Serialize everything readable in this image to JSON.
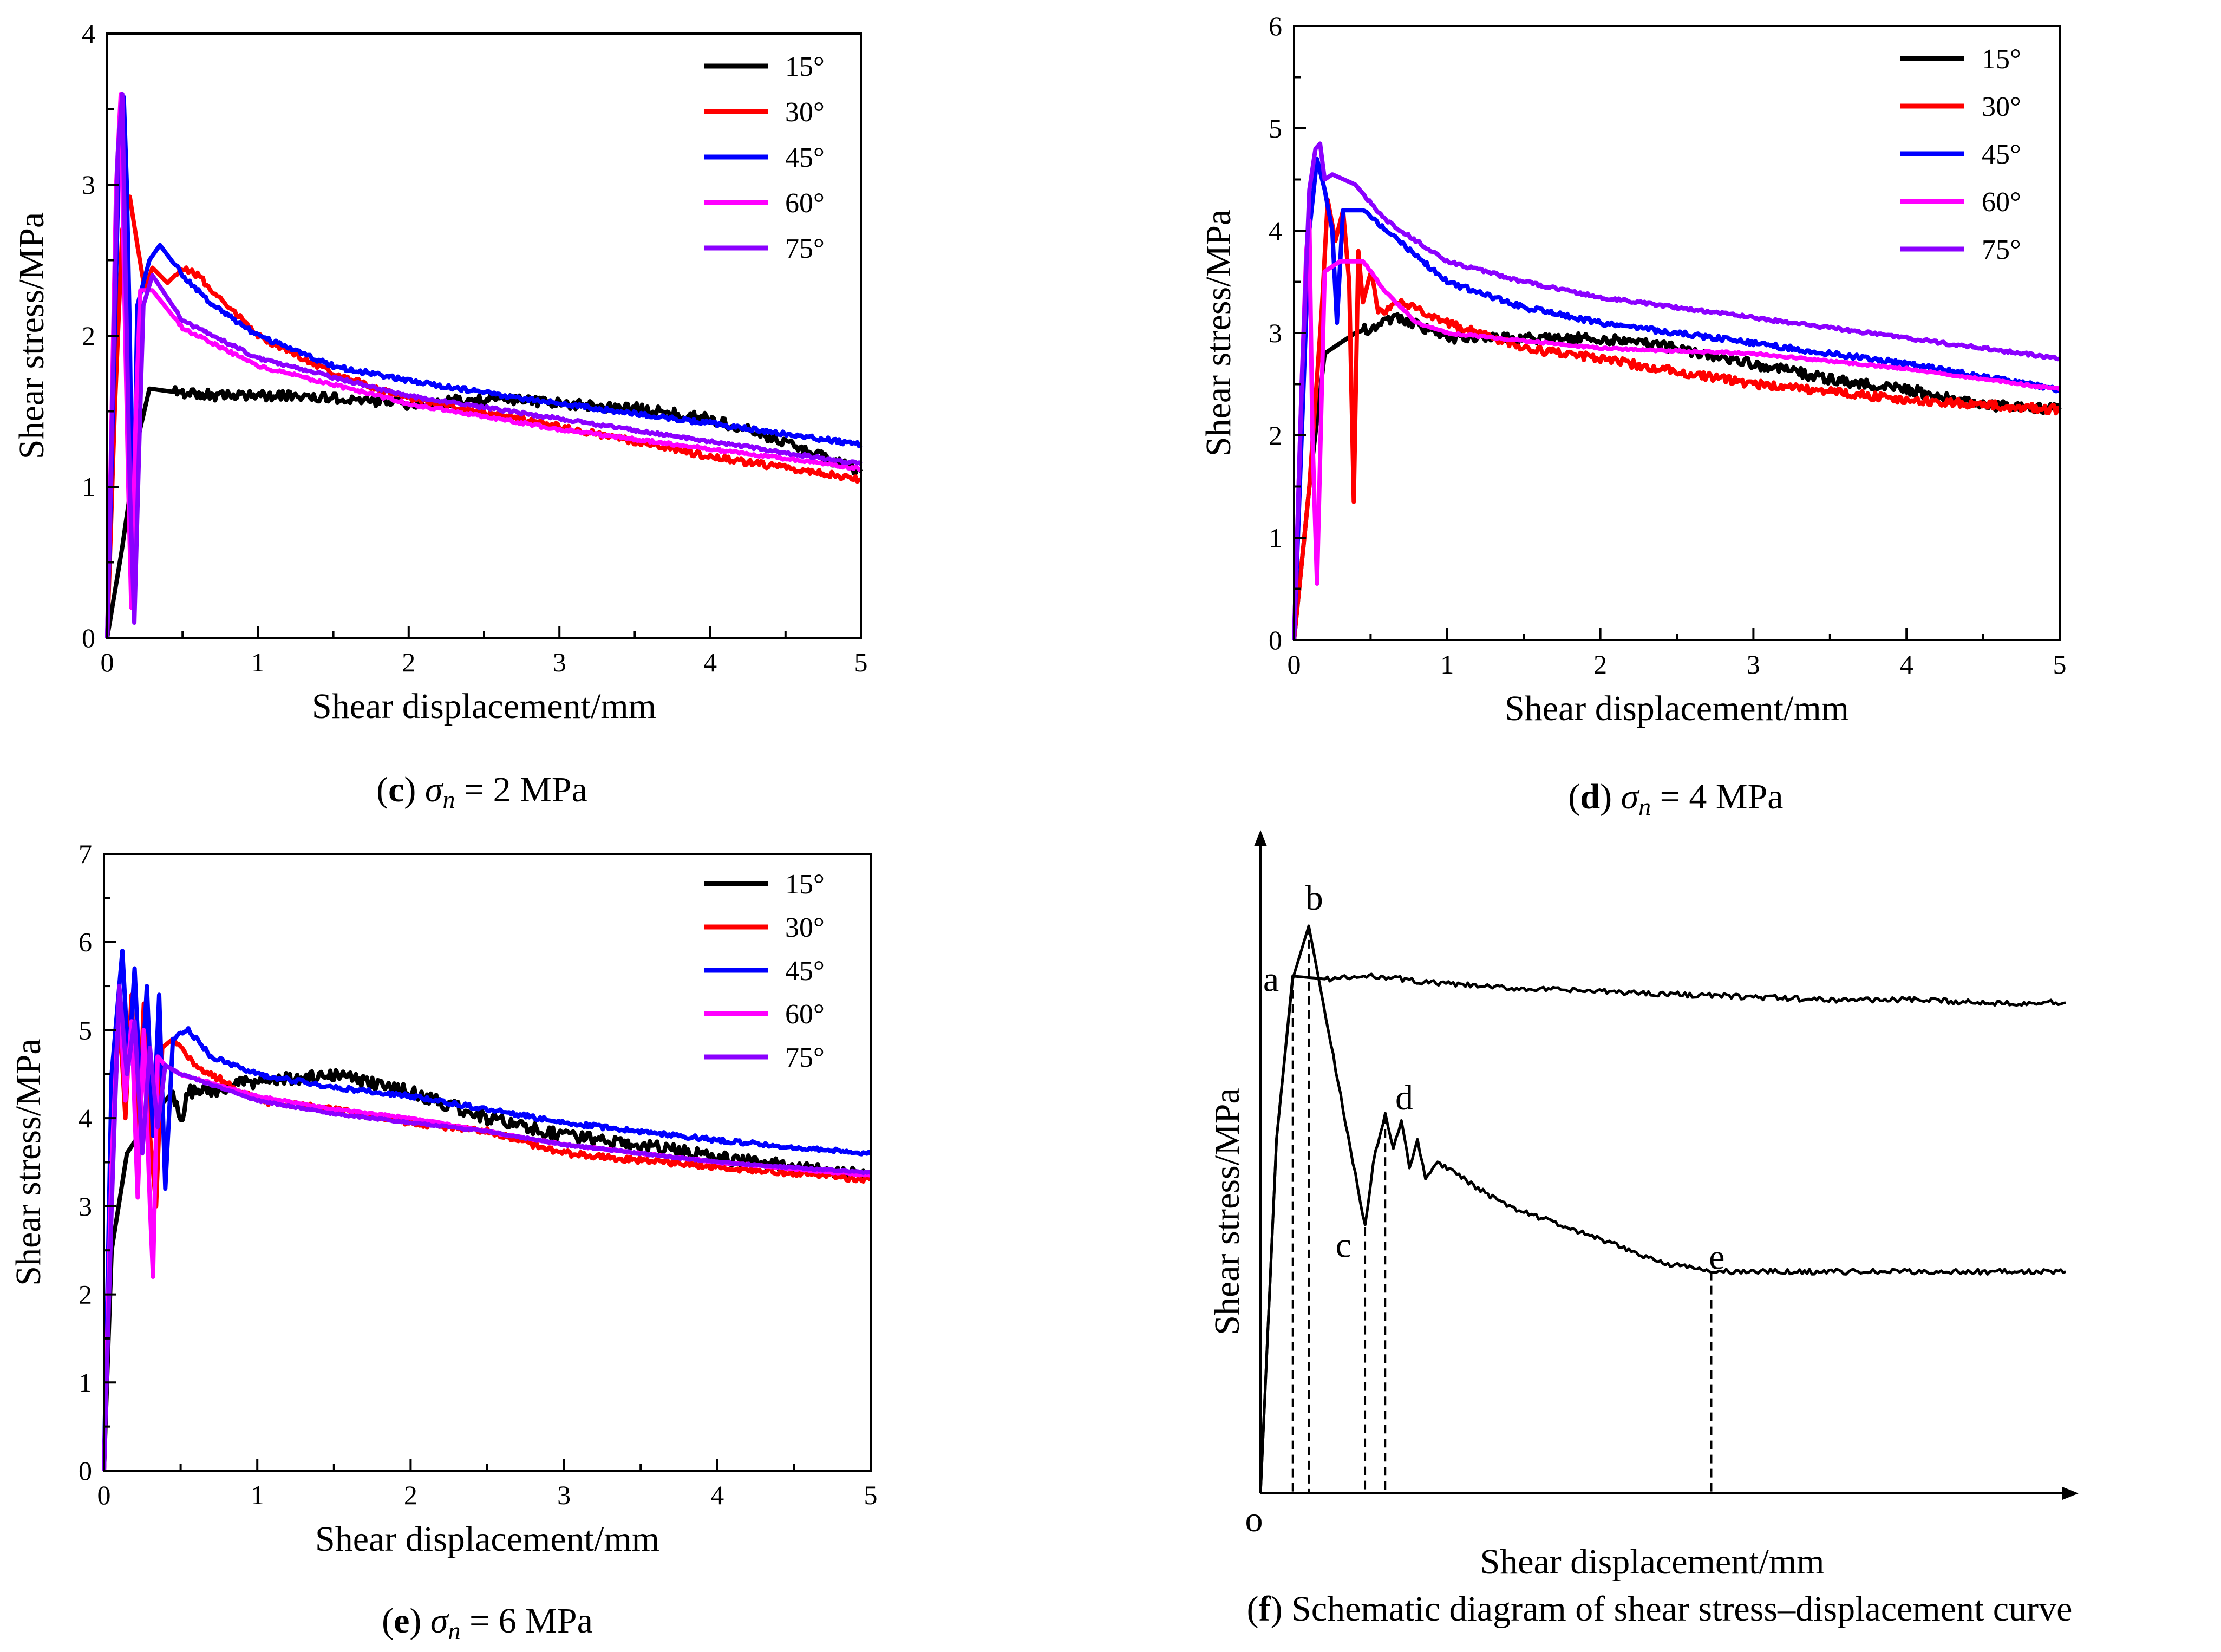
{
  "chart_data": [
    {
      "id": "c",
      "type": "line",
      "caption": {
        "letter": "c",
        "open": "(",
        "close": ")",
        "sigma": "σ",
        "sub": "n",
        "rest": " = 2 MPa"
      },
      "xlabel": "Shear displacement/mm",
      "ylabel": "Shear stress/MPa",
      "xlim": [
        0,
        5
      ],
      "ylim": [
        0,
        4
      ],
      "xticks": [
        0,
        1,
        2,
        3,
        4,
        5
      ],
      "yticks": [
        0,
        1,
        2,
        3,
        4
      ],
      "legend_position": "top-right",
      "series": [
        {
          "name": "15°",
          "color": "#000000",
          "noise": 0.035,
          "x": [
            0,
            0.1,
            0.2,
            0.28,
            0.5,
            0.8,
            1.2,
            1.6,
            2.0,
            2.3,
            2.6,
            3.0,
            3.5,
            4.0,
            4.5,
            5.0
          ],
          "y": [
            0,
            0.6,
            1.3,
            1.65,
            1.62,
            1.6,
            1.6,
            1.58,
            1.55,
            1.57,
            1.58,
            1.55,
            1.52,
            1.45,
            1.3,
            1.1
          ]
        },
        {
          "name": "30°",
          "color": "#ff0000",
          "noise": 0.02,
          "x": [
            0,
            0.05,
            0.1,
            0.15,
            0.2,
            0.25,
            0.3,
            0.4,
            0.5,
            0.6,
            0.8,
            1.0,
            1.5,
            2.0,
            3.0,
            4.0,
            5.0
          ],
          "y": [
            0,
            1.5,
            2.7,
            2.92,
            2.6,
            2.3,
            2.45,
            2.35,
            2.45,
            2.4,
            2.2,
            2.0,
            1.75,
            1.58,
            1.4,
            1.2,
            1.05
          ]
        },
        {
          "name": "45°",
          "color": "#0000ff",
          "noise": 0.015,
          "x": [
            0,
            0.05,
            0.08,
            0.11,
            0.13,
            0.15,
            0.17,
            0.2,
            0.28,
            0.35,
            0.5,
            0.7,
            1.0,
            1.5,
            2.0,
            3.0,
            4.0,
            5.0
          ],
          "y": [
            0,
            2.0,
            3.3,
            3.58,
            3.0,
            2.0,
            0.5,
            2.2,
            2.5,
            2.6,
            2.4,
            2.2,
            2.0,
            1.8,
            1.7,
            1.55,
            1.42,
            1.28
          ]
        },
        {
          "name": "60°",
          "color": "#ff00ff",
          "noise": 0.01,
          "x": [
            0,
            0.03,
            0.06,
            0.09,
            0.11,
            0.14,
            0.16,
            0.19,
            0.22,
            0.3,
            0.5,
            1.0,
            2.0,
            3.0,
            4.0,
            5.0
          ],
          "y": [
            0,
            1.5,
            3.0,
            3.6,
            2.5,
            1.0,
            0.2,
            1.5,
            2.3,
            2.3,
            2.05,
            1.8,
            1.55,
            1.38,
            1.25,
            1.12
          ]
        },
        {
          "name": "75°",
          "color": "#8b00ff",
          "noise": 0.01,
          "x": [
            0,
            0.04,
            0.07,
            0.1,
            0.12,
            0.15,
            0.18,
            0.21,
            0.24,
            0.3,
            0.5,
            1.0,
            2.0,
            3.0,
            4.0,
            5.0
          ],
          "y": [
            0,
            1.8,
            3.2,
            3.6,
            2.5,
            1.0,
            0.1,
            1.2,
            2.2,
            2.4,
            2.1,
            1.85,
            1.6,
            1.45,
            1.3,
            1.15
          ]
        }
      ]
    },
    {
      "id": "d",
      "type": "line",
      "caption": {
        "letter": "d",
        "open": "(",
        "close": ")",
        "sigma": "σ",
        "sub": "n",
        "rest": " = 4 MPa"
      },
      "xlabel": "Shear displacement/mm",
      "ylabel": "Shear stress/MPa",
      "xlim": [
        0,
        5
      ],
      "ylim": [
        0,
        6
      ],
      "xticks": [
        0,
        1,
        2,
        3,
        4,
        5
      ],
      "yticks": [
        0,
        1,
        2,
        3,
        4,
        5,
        6
      ],
      "legend_position": "top-right",
      "series": [
        {
          "name": "15°",
          "color": "#000000",
          "noise": 0.05,
          "x": [
            0,
            0.1,
            0.2,
            0.4,
            0.7,
            1.0,
            1.5,
            2.0,
            2.5,
            3.0,
            3.5,
            4.0,
            4.5,
            5.0
          ],
          "y": [
            0,
            1.5,
            2.8,
            3.0,
            3.15,
            2.95,
            2.95,
            2.95,
            2.85,
            2.7,
            2.55,
            2.45,
            2.3,
            2.25
          ]
        },
        {
          "name": "30°",
          "color": "#ff0000",
          "noise": 0.04,
          "x": [
            0,
            0.1,
            0.18,
            0.22,
            0.27,
            0.32,
            0.36,
            0.39,
            0.42,
            0.45,
            0.5,
            0.55,
            0.7,
            1.0,
            1.5,
            2.0,
            3.0,
            4.0,
            5.0
          ],
          "y": [
            0,
            1.5,
            3.2,
            4.3,
            3.9,
            4.2,
            3.5,
            1.35,
            3.8,
            3.3,
            3.6,
            3.2,
            3.3,
            3.1,
            2.85,
            2.75,
            2.5,
            2.35,
            2.25
          ]
        },
        {
          "name": "45°",
          "color": "#0000ff",
          "noise": 0.025,
          "x": [
            0,
            0.05,
            0.1,
            0.15,
            0.2,
            0.25,
            0.28,
            0.32,
            0.45,
            0.6,
            1.0,
            1.5,
            2.0,
            3.0,
            4.0,
            5.0
          ],
          "y": [
            0,
            2.0,
            4.0,
            4.7,
            4.4,
            4.0,
            3.1,
            4.2,
            4.2,
            4.0,
            3.5,
            3.25,
            3.1,
            2.9,
            2.7,
            2.45
          ]
        },
        {
          "name": "60°",
          "color": "#ff00ff",
          "noise": 0.01,
          "x": [
            0,
            0.05,
            0.08,
            0.1,
            0.12,
            0.15,
            0.2,
            0.3,
            0.45,
            0.6,
            0.8,
            1.0,
            2.0,
            3.0,
            4.0,
            5.0
          ],
          "y": [
            0,
            2.5,
            3.8,
            4.1,
            2.0,
            0.55,
            3.6,
            3.7,
            3.7,
            3.4,
            3.1,
            3.0,
            2.85,
            2.8,
            2.65,
            2.45
          ]
        },
        {
          "name": "75°",
          "color": "#8b00ff",
          "noise": 0.015,
          "x": [
            0,
            0.05,
            0.1,
            0.14,
            0.17,
            0.2,
            0.25,
            0.4,
            0.6,
            1.0,
            1.5,
            2.0,
            3.0,
            4.0,
            5.0
          ],
          "y": [
            0,
            2.5,
            4.4,
            4.8,
            4.85,
            4.5,
            4.55,
            4.45,
            4.1,
            3.7,
            3.5,
            3.35,
            3.15,
            2.95,
            2.75
          ]
        }
      ]
    },
    {
      "id": "e",
      "type": "line",
      "caption": {
        "letter": "e",
        "open": "(",
        "close": ")",
        "sigma": "σ",
        "sub": "n",
        "rest": " = 6 MPa"
      },
      "xlabel": "Shear displacement/mm",
      "ylabel": "Shear stress/MPa",
      "xlim": [
        0,
        5
      ],
      "ylim": [
        0,
        7
      ],
      "xticks": [
        0,
        1,
        2,
        3,
        4,
        5
      ],
      "yticks": [
        0,
        1,
        2,
        3,
        4,
        5,
        6,
        7
      ],
      "legend_position": "top-right",
      "series": [
        {
          "name": "15°",
          "color": "#000000",
          "noise": 0.07,
          "x": [
            0,
            0.05,
            0.15,
            0.3,
            0.45,
            0.5,
            0.55,
            0.7,
            0.9,
            1.2,
            1.5,
            2.0,
            2.5,
            3.0,
            3.5,
            4.0,
            4.5,
            5.0
          ],
          "y": [
            0,
            2.5,
            3.6,
            4.0,
            4.3,
            3.95,
            4.3,
            4.3,
            4.4,
            4.45,
            4.5,
            4.3,
            4.0,
            3.8,
            3.7,
            3.55,
            3.45,
            3.35
          ]
        },
        {
          "name": "30°",
          "color": "#ff0000",
          "noise": 0.035,
          "x": [
            0,
            0.05,
            0.1,
            0.14,
            0.18,
            0.22,
            0.26,
            0.3,
            0.34,
            0.38,
            0.45,
            0.6,
            1.0,
            1.5,
            2.0,
            2.5,
            3.0,
            4.0,
            5.0
          ],
          "y": [
            0,
            3.5,
            5.2,
            4.0,
            5.4,
            3.6,
            5.3,
            3.8,
            3.0,
            4.8,
            4.9,
            4.6,
            4.2,
            4.1,
            3.95,
            3.85,
            3.6,
            3.45,
            3.3
          ]
        },
        {
          "name": "45°",
          "color": "#0000ff",
          "noise": 0.025,
          "x": [
            0,
            0.05,
            0.12,
            0.16,
            0.2,
            0.24,
            0.28,
            0.32,
            0.36,
            0.4,
            0.45,
            0.55,
            0.7,
            1.0,
            1.5,
            2.0,
            2.5,
            3.0,
            4.0,
            5.0
          ],
          "y": [
            0,
            4.5,
            5.9,
            4.6,
            5.7,
            4.2,
            5.5,
            3.8,
            5.4,
            3.2,
            4.9,
            5.0,
            4.7,
            4.5,
            4.35,
            4.25,
            4.1,
            3.95,
            3.75,
            3.6
          ]
        },
        {
          "name": "60°",
          "color": "#ff00ff",
          "noise": 0.01,
          "x": [
            0,
            0.05,
            0.1,
            0.14,
            0.18,
            0.22,
            0.26,
            0.3,
            0.32,
            0.35,
            0.4,
            0.5,
            1.0,
            1.5,
            2.0,
            2.5,
            3.0,
            4.0,
            5.0
          ],
          "y": [
            0,
            3.5,
            5.4,
            4.2,
            5.1,
            3.1,
            5.0,
            3.0,
            2.2,
            4.7,
            4.6,
            4.5,
            4.25,
            4.1,
            4.0,
            3.85,
            3.7,
            3.5,
            3.35
          ]
        },
        {
          "name": "75°",
          "color": "#8b00ff",
          "noise": 0.01,
          "x": [
            0,
            0.05,
            0.1,
            0.15,
            0.2,
            0.25,
            0.3,
            0.35,
            0.4,
            0.5,
            1.0,
            1.5,
            2.0,
            2.5,
            3.0,
            4.0,
            5.0
          ],
          "y": [
            0,
            3.0,
            5.5,
            4.5,
            5.1,
            3.6,
            4.8,
            3.9,
            4.6,
            4.5,
            4.2,
            4.05,
            3.95,
            3.85,
            3.7,
            3.5,
            3.38
          ]
        }
      ]
    },
    {
      "id": "f",
      "type": "line",
      "caption": {
        "letter": "f",
        "open": "(",
        "close": ")",
        "rest": " Schematic diagram of shear stress–displacement curve"
      },
      "xlabel": "Shear displacement/mm",
      "ylabel": "Shear stress/MPa",
      "origin_label": "o",
      "points": [
        "a",
        "b",
        "c",
        "d",
        "e"
      ],
      "series": [
        {
          "name": "upper",
          "color": "#000000",
          "x": [
            0,
            0.2,
            0.4,
            0.8,
            1.5,
            2.0,
            3.0,
            4.0,
            5.0,
            6.0,
            7.0,
            8.0,
            9.0,
            10.0
          ],
          "y": [
            0,
            6.0,
            8.75,
            8.7,
            8.75,
            8.65,
            8.55,
            8.5,
            8.45,
            8.4,
            8.35,
            8.35,
            8.3,
            8.3
          ]
        },
        {
          "name": "lower",
          "color": "#000000",
          "x": [
            0,
            0.2,
            0.4,
            0.6,
            1.3,
            1.4,
            1.55,
            1.65,
            1.75,
            1.85,
            1.95,
            2.05,
            2.2,
            3.0,
            4.0,
            5.0,
            5.6,
            6.0,
            7.0,
            8.0,
            9.0,
            10.0
          ],
          "y": [
            0,
            6.0,
            8.7,
            9.6,
            4.5,
            5.6,
            6.4,
            5.8,
            6.3,
            5.5,
            6.0,
            5.3,
            5.6,
            4.9,
            4.4,
            3.9,
            3.75,
            3.75,
            3.75,
            3.75,
            3.75,
            3.75
          ]
        }
      ]
    }
  ]
}
